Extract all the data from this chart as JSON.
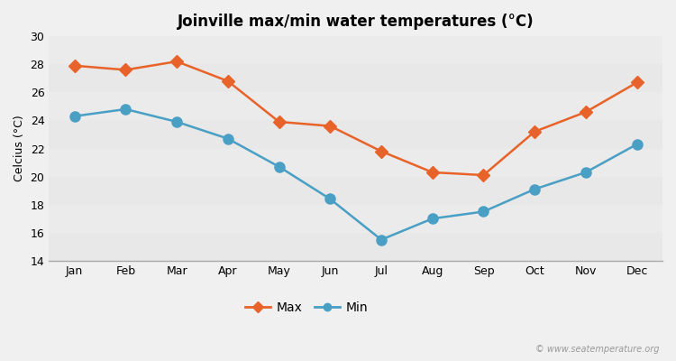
{
  "title": "Joinville max/min water temperatures (°C)",
  "ylabel": "Celcius (°C)",
  "months": [
    "Jan",
    "Feb",
    "Mar",
    "Apr",
    "May",
    "Jun",
    "Jul",
    "Aug",
    "Sep",
    "Oct",
    "Nov",
    "Dec"
  ],
  "max_values": [
    27.9,
    27.6,
    28.2,
    26.8,
    23.9,
    23.6,
    21.8,
    20.3,
    20.1,
    23.2,
    24.6,
    26.7
  ],
  "min_values": [
    24.3,
    24.8,
    23.9,
    22.7,
    20.7,
    18.4,
    15.5,
    17.0,
    17.5,
    19.1,
    20.3,
    22.3
  ],
  "max_color": "#e8632a",
  "min_color": "#4a9fc4",
  "background_color": "#f0f0f0",
  "band_colors": [
    "#e8e8e8",
    "#ebebeb"
  ],
  "ylim": [
    14,
    30
  ],
  "yticks": [
    14,
    16,
    18,
    20,
    22,
    24,
    26,
    28,
    30
  ],
  "watermark": "© www.seatemperature.org",
  "legend_labels": [
    "Max",
    "Min"
  ],
  "marker_size_max": 7,
  "marker_size_min": 8,
  "line_width": 1.8
}
